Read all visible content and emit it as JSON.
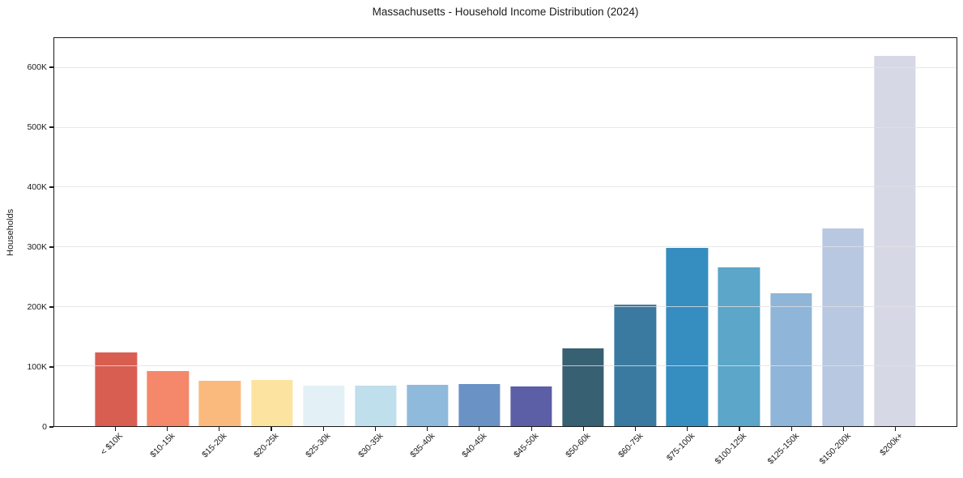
{
  "chart_data": {
    "type": "bar",
    "title": "Massachusetts - Household Income Distribution (2024)",
    "xlabel": "",
    "ylabel": "Households",
    "categories": [
      "< $10K",
      "$10-15k",
      "$15-20k",
      "$20-25k",
      "$25-30k",
      "$30-35k",
      "$35-40k",
      "$40-45k",
      "$45-50k",
      "$50-60k",
      "$60-75k",
      "$75-100k",
      "$100-125k",
      "$125-150k",
      "$150-200k",
      "$200k+"
    ],
    "values": [
      123000,
      92000,
      76000,
      77000,
      68000,
      68000,
      69000,
      70000,
      67000,
      130000,
      203000,
      299000,
      266000,
      222000,
      331000,
      620000
    ],
    "bar_colors": [
      "#d95e52",
      "#f5876a",
      "#fbba7d",
      "#fce4a0",
      "#e3f1f7",
      "#bfdfec",
      "#90badb",
      "#6b92c5",
      "#5c5ea6",
      "#386073",
      "#3a7aa0",
      "#358dc0",
      "#5ba6c9",
      "#8fb5d8",
      "#b8c8e0",
      "#d6d8e6"
    ],
    "ylim": [
      0,
      650000
    ],
    "yticks": [
      0,
      100000,
      200000,
      300000,
      400000,
      500000,
      600000
    ],
    "ytick_labels": [
      "0",
      "100K",
      "200K",
      "300K",
      "400K",
      "500K",
      "600K"
    ],
    "grid": "horizontal",
    "legend": "none",
    "bar_width_fraction": 0.8
  },
  "colors": {
    "spine": "#1a1a1a",
    "grid": "#e5e5e5",
    "text": "#1a1a1a",
    "background": "#ffffff"
  }
}
